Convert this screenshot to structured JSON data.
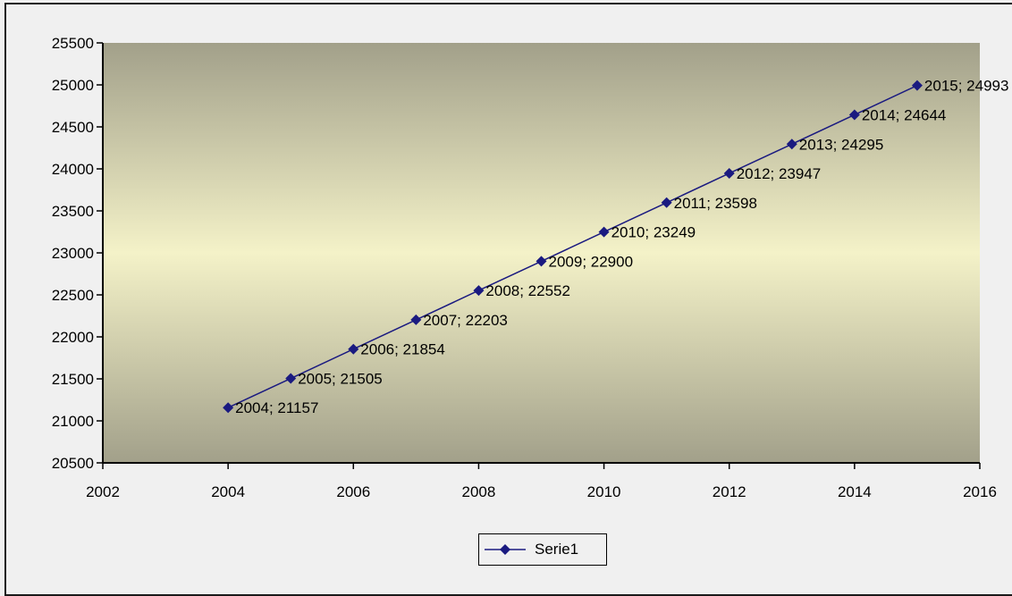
{
  "chart_data": {
    "type": "line",
    "title": "",
    "xlabel": "",
    "ylabel": "",
    "xlim": [
      2002,
      2016
    ],
    "ylim": [
      20500,
      25500
    ],
    "xticks": [
      2002,
      2004,
      2006,
      2008,
      2010,
      2012,
      2014,
      2016
    ],
    "yticks": [
      20500,
      21000,
      21500,
      22000,
      22500,
      23000,
      23500,
      24000,
      24500,
      25000,
      25500
    ],
    "grid": false,
    "legend_position": "bottom",
    "series": [
      {
        "name": "Serie1",
        "color": "#1a1a80",
        "marker": "diamond",
        "x": [
          2004,
          2005,
          2006,
          2007,
          2008,
          2009,
          2010,
          2011,
          2012,
          2013,
          2014,
          2015
        ],
        "y": [
          21157,
          21505,
          21854,
          22203,
          22552,
          22900,
          23249,
          23598,
          23947,
          24295,
          24644,
          24993
        ],
        "labels": [
          "2004; 21157",
          "2005; 21505",
          "2006; 21854",
          "2007; 22203",
          "2008; 22552",
          "2009; 22900",
          "2010; 23249",
          "2011; 23598",
          "2012; 23947",
          "2013; 24295",
          "2014; 24644",
          "2015; 24993"
        ]
      }
    ]
  },
  "legend": {
    "label": "Serie1"
  }
}
